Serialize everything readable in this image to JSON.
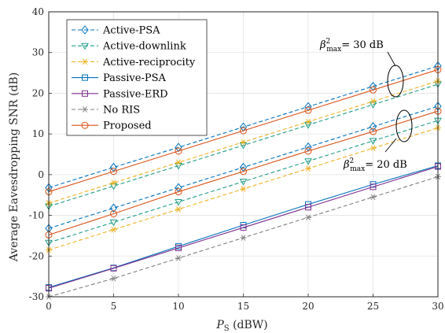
{
  "chart_data": {
    "type": "line",
    "xlabel_main": "P",
    "xlabel_sub": "S",
    "xlabel_unit": " (dBW)",
    "ylabel": "Average Eavesdropping SNR (dB)",
    "xlim": [
      0,
      30
    ],
    "ylim": [
      -30,
      40
    ],
    "xticks": [
      0,
      5,
      10,
      15,
      20,
      25,
      30
    ],
    "yticks": [
      -30,
      -20,
      -10,
      0,
      10,
      20,
      30,
      40
    ],
    "grid": true,
    "legend_position": "top-left",
    "x": [
      0,
      5,
      10,
      15,
      20,
      25,
      30
    ],
    "series": [
      {
        "name": "Active-PSA",
        "color": "#0072BD",
        "dashed": true,
        "marker": "diamond",
        "groups": {
          "30 dB": [
            -3.2,
            1.8,
            6.7,
            11.7,
            16.7,
            21.7,
            26.7
          ],
          "20 dB": [
            -13.2,
            -8.2,
            -3.2,
            1.8,
            6.8,
            11.8,
            16.8
          ]
        }
      },
      {
        "name": "Active-downlink",
        "color": "#1F9E89",
        "dashed": true,
        "marker": "triangle-down",
        "groups": {
          "30 dB": [
            -7.8,
            -2.8,
            2.2,
            7.2,
            12.2,
            17.2,
            22.2
          ],
          "20 dB": [
            -16.7,
            -11.7,
            -6.7,
            -1.7,
            3.3,
            8.3,
            13.3
          ]
        }
      },
      {
        "name": "Active-reciprocity",
        "color": "#EDB120",
        "dashed": true,
        "marker": "asterisk",
        "groups": {
          "30 dB": [
            -7.0,
            -2.0,
            3.0,
            8.0,
            13.0,
            18.0,
            23.0
          ],
          "20 dB": [
            -18.5,
            -13.5,
            -8.5,
            -3.5,
            1.5,
            6.5,
            11.5
          ]
        }
      },
      {
        "name": "Passive-PSA",
        "color": "#0072BD",
        "dashed": false,
        "marker": "square",
        "groups": {
          "single": [
            -27.7,
            -22.9,
            -17.6,
            -12.4,
            -7.3,
            -2.4,
            2.2
          ]
        }
      },
      {
        "name": "Passive-ERD",
        "color": "#7E2F8E",
        "dashed": false,
        "marker": "square",
        "groups": {
          "single": [
            -27.9,
            -23.0,
            -18.0,
            -13.0,
            -8.0,
            -3.0,
            2.0
          ]
        }
      },
      {
        "name": "No RIS",
        "color": "#808080",
        "dashed": true,
        "marker": "asterisk",
        "groups": {
          "single": [
            -30.0,
            -25.5,
            -20.5,
            -15.5,
            -10.5,
            -5.5,
            -0.5
          ]
        }
      },
      {
        "name": "Proposed",
        "color": "#D95319",
        "dashed": false,
        "marker": "circle",
        "groups": {
          "30 dB": [
            -4.2,
            0.8,
            5.8,
            10.8,
            15.8,
            20.8,
            25.8
          ],
          "20 dB": [
            -14.8,
            -9.6,
            -4.2,
            0.8,
            5.8,
            10.6,
            15.6
          ]
        }
      }
    ],
    "annotations": [
      {
        "prefix": "β",
        "sup": "2",
        "sub": "max",
        "suffix": "= 30 dB"
      },
      {
        "prefix": "β",
        "sup": "2",
        "sub": "max",
        "suffix": "= 20 dB"
      }
    ]
  }
}
